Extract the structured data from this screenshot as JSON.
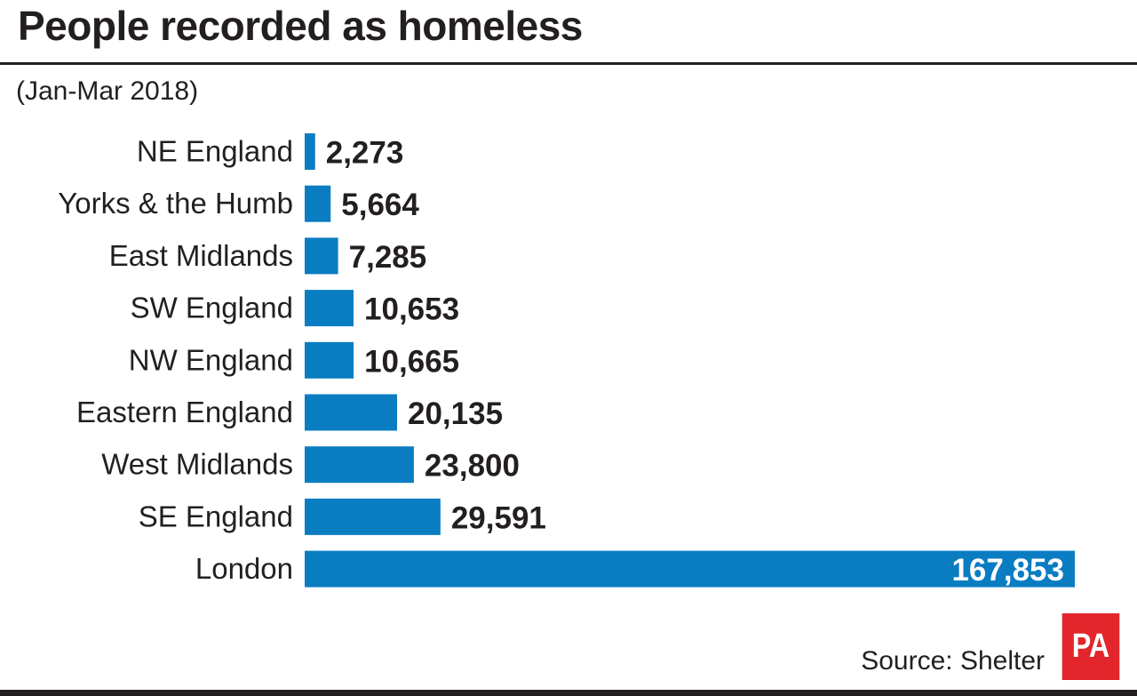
{
  "chart_data": {
    "type": "bar",
    "orientation": "horizontal",
    "title": "People recorded as homeless",
    "subtitle": "(Jan-Mar 2018)",
    "categories": [
      "NE England",
      "Yorks & the Humb",
      "East Midlands",
      "SW England",
      "NW England",
      "Eastern England",
      "West Midlands",
      "SE England",
      "London"
    ],
    "values": [
      2273,
      5664,
      7285,
      10653,
      10665,
      20135,
      23800,
      29591,
      167853
    ],
    "value_labels": [
      "2,273",
      "5,664",
      "7,285",
      "10,653",
      "10,665",
      "20,135",
      "23,800",
      "29,591",
      "167,853"
    ],
    "xlim": [
      0,
      167853
    ],
    "grid": false,
    "bar_color": "#0a7dc2"
  },
  "source": "Source: Shelter",
  "logo": "PA",
  "colors": {
    "logo": "#e3262b",
    "text": "#231f20"
  }
}
